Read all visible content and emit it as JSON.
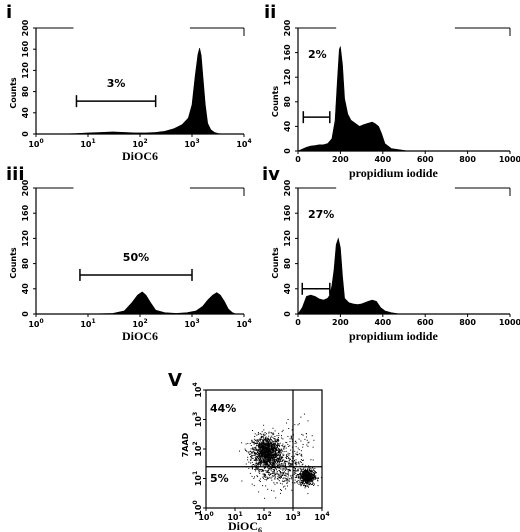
{
  "chart_data": [
    {
      "id": "i",
      "panel_label": "i",
      "type": "area",
      "xscale": "log",
      "xlim": [
        1,
        10000
      ],
      "ylim": [
        0,
        200
      ],
      "xlabel": "DiOC6",
      "ylabel": "Counts",
      "x_ticks": [
        {
          "base": "10",
          "exp": "0"
        },
        {
          "base": "10",
          "exp": "1"
        },
        {
          "base": "10",
          "exp": "2"
        },
        {
          "base": "10",
          "exp": "3"
        },
        {
          "base": "10",
          "exp": "4"
        }
      ],
      "y_ticks": [
        "0",
        "40",
        "80",
        "120",
        "160",
        "200"
      ],
      "gate": {
        "x1": 6,
        "x2": 200,
        "y": 62,
        "label": "3%"
      },
      "histogram": {
        "x": [
          1,
          3,
          6,
          10,
          18,
          30,
          50,
          80,
          130,
          200,
          300,
          450,
          650,
          850,
          1000,
          1150,
          1300,
          1400,
          1500,
          1650,
          1800,
          2000,
          2300,
          2700,
          3200,
          4000,
          10000
        ],
        "y": [
          0,
          0,
          1,
          2,
          3,
          4,
          3,
          2,
          2,
          3,
          5,
          10,
          18,
          30,
          55,
          110,
          150,
          162,
          148,
          100,
          55,
          20,
          8,
          3,
          1,
          0,
          0
        ]
      }
    },
    {
      "id": "ii",
      "panel_label": "ii",
      "type": "area",
      "xscale": "linear",
      "xlim": [
        0,
        1000
      ],
      "ylim": [
        0,
        200
      ],
      "xlabel": "propidium iodide",
      "ylabel": "Counts",
      "x_ticks": [
        "0",
        "200",
        "400",
        "600",
        "800",
        "1000"
      ],
      "y_ticks": [
        "0",
        "40",
        "80",
        "120",
        "160",
        "200"
      ],
      "gate": {
        "x1": 25,
        "x2": 150,
        "y": 55,
        "label": "2%"
      },
      "histogram": {
        "x": [
          0,
          20,
          40,
          60,
          80,
          100,
          120,
          140,
          160,
          175,
          185,
          195,
          200,
          210,
          220,
          235,
          250,
          270,
          290,
          310,
          330,
          350,
          365,
          380,
          395,
          410,
          440,
          480,
          520,
          1000
        ],
        "y": [
          0,
          3,
          6,
          8,
          9,
          10,
          10,
          12,
          20,
          50,
          110,
          165,
          170,
          140,
          85,
          60,
          50,
          45,
          40,
          43,
          45,
          47,
          44,
          40,
          28,
          12,
          4,
          2,
          0,
          0
        ]
      }
    },
    {
      "id": "iii",
      "panel_label": "iii",
      "type": "area",
      "xscale": "log",
      "xlim": [
        1,
        10000
      ],
      "ylim": [
        0,
        200
      ],
      "xlabel": "DiOC6",
      "ylabel": "Counts",
      "x_ticks": [
        {
          "base": "10",
          "exp": "0"
        },
        {
          "base": "10",
          "exp": "1"
        },
        {
          "base": "10",
          "exp": "2"
        },
        {
          "base": "10",
          "exp": "3"
        },
        {
          "base": "10",
          "exp": "4"
        }
      ],
      "y_ticks": [
        "0",
        "40",
        "80",
        "120",
        "160",
        "200"
      ],
      "gate": {
        "x1": 7,
        "x2": 1000,
        "y": 62,
        "label": "50%"
      },
      "histogram": {
        "x": [
          1,
          10,
          30,
          50,
          70,
          90,
          110,
          130,
          160,
          200,
          300,
          500,
          800,
          1200,
          1600,
          2000,
          2500,
          3000,
          3500,
          4200,
          5000,
          6000,
          7000,
          10000
        ],
        "y": [
          0,
          0,
          1,
          5,
          18,
          30,
          35,
          30,
          18,
          6,
          2,
          1,
          2,
          5,
          12,
          22,
          30,
          34,
          30,
          20,
          8,
          2,
          0,
          0
        ]
      }
    },
    {
      "id": "iv",
      "panel_label": "iv",
      "type": "area",
      "xscale": "linear",
      "xlim": [
        0,
        1000
      ],
      "ylim": [
        0,
        200
      ],
      "xlabel": "propidium iodide",
      "ylabel": "Counts",
      "x_ticks": [
        "0",
        "200",
        "400",
        "600",
        "800",
        "1000"
      ],
      "y_ticks": [
        "0",
        "40",
        "80",
        "120",
        "160",
        "200"
      ],
      "gate": {
        "x1": 20,
        "x2": 150,
        "y": 40,
        "label": "27%"
      },
      "histogram": {
        "x": [
          0,
          20,
          40,
          60,
          80,
          100,
          120,
          140,
          150,
          160,
          170,
          180,
          190,
          200,
          210,
          220,
          240,
          260,
          280,
          300,
          330,
          350,
          370,
          390,
          410,
          440,
          480,
          1000
        ],
        "y": [
          0,
          10,
          28,
          30,
          28,
          24,
          22,
          25,
          30,
          45,
          70,
          110,
          120,
          105,
          60,
          25,
          18,
          16,
          15,
          16,
          20,
          22,
          20,
          10,
          5,
          2,
          0,
          0
        ]
      }
    },
    {
      "id": "v",
      "panel_label": "V",
      "type": "scatter",
      "xscale": "log",
      "yscale": "log",
      "xlim": [
        1,
        10000
      ],
      "ylim": [
        1,
        10000
      ],
      "xlabel": "DiOC",
      "xlabel_sub": "6",
      "ylabel": "7AAD",
      "x_ticks": [
        {
          "base": "10",
          "exp": "0"
        },
        {
          "base": "10",
          "exp": "1"
        },
        {
          "base": "10",
          "exp": "2"
        },
        {
          "base": "10",
          "exp": "3"
        },
        {
          "base": "10",
          "exp": "4"
        }
      ],
      "y_ticks": [
        {
          "base": "10",
          "exp": "0"
        },
        {
          "base": "10",
          "exp": "1"
        },
        {
          "base": "10",
          "exp": "2"
        },
        {
          "base": "10",
          "exp": "3"
        },
        {
          "base": "10",
          "exp": "4"
        }
      ],
      "quadrant_x": 1000,
      "quadrant_y": 25,
      "quadrant_labels": [
        {
          "text": "44%",
          "position": "upper-left"
        },
        {
          "text": "5%",
          "position": "lower-left"
        }
      ],
      "clusters": [
        {
          "center_x": 120,
          "center_y": 80,
          "spread_log_x": 0.25,
          "spread_log_y": 0.28,
          "count": 1300
        },
        {
          "center_x": 3000,
          "center_y": 12,
          "spread_log_x": 0.13,
          "spread_log_y": 0.14,
          "count": 600
        },
        {
          "center_x": 300,
          "center_y": 25,
          "spread_log_x": 0.45,
          "spread_log_y": 0.35,
          "count": 500
        },
        {
          "center_x": 1500,
          "center_y": 200,
          "spread_log_x": 0.3,
          "spread_log_y": 0.4,
          "count": 70
        }
      ]
    }
  ]
}
